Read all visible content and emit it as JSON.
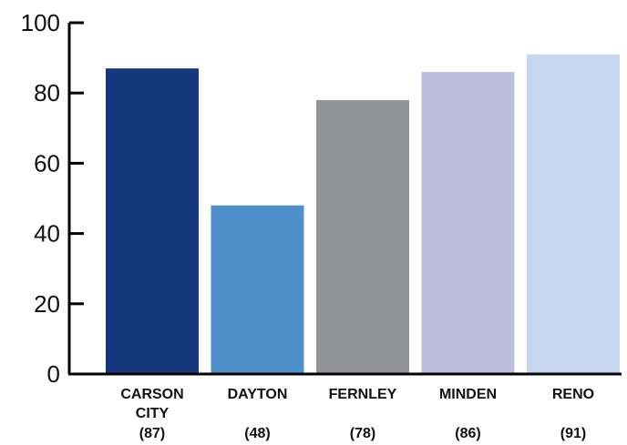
{
  "chart_data": {
    "type": "bar",
    "categories": [
      {
        "lines": [
          "CARSON",
          "CITY"
        ],
        "value_label": "(87)"
      },
      {
        "lines": [
          "DAYTON"
        ],
        "value_label": "(48)"
      },
      {
        "lines": [
          "FERNLEY"
        ],
        "value_label": "(78)"
      },
      {
        "lines": [
          "MINDEN"
        ],
        "value_label": "(86)"
      },
      {
        "lines": [
          "RENO"
        ],
        "value_label": "(91)"
      }
    ],
    "values": [
      87,
      48,
      78,
      86,
      91
    ],
    "colors": [
      "#17387e",
      "#4f8fcc",
      "#929497",
      "#bcbedc",
      "#c6d6ee"
    ],
    "ylim": [
      0,
      100
    ],
    "yticks": [
      "0",
      "20",
      "40",
      "60",
      "80",
      "100"
    ],
    "grid": false,
    "title": "",
    "xlabel": "",
    "ylabel": ""
  }
}
